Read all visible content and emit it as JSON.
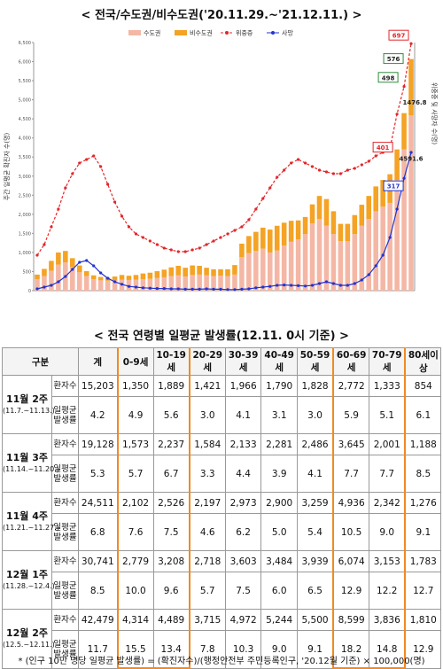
{
  "chart_data": {
    "type": "bar",
    "title": "< 전국/수도권/비수도권('20.11.29.~'21.12.11.) >",
    "y_label": "주간 일평균 확진자 수(명)",
    "y2_label": "위중증 및 사망자 수(명)",
    "categories": [
      null,
      null,
      null,
      null,
      null,
      null,
      null,
      null,
      null,
      null,
      null,
      null,
      null,
      null,
      null,
      null,
      null,
      null,
      null,
      null,
      null,
      null,
      null,
      null,
      null,
      null,
      null,
      null,
      null,
      null,
      null,
      null,
      null,
      null,
      null,
      null,
      null,
      null,
      null,
      null,
      null,
      null,
      null,
      null,
      null,
      null,
      null,
      null,
      null,
      null,
      null,
      null,
      null,
      null
    ],
    "stacked": true,
    "ylim": [
      0,
      6500
    ],
    "yticks": [
      0,
      500,
      {
        "value": 1000,
        "label": "1,000"
      },
      {
        "value": 1500,
        "label": "1,500"
      },
      {
        "value": 2000,
        "label": "2,000"
      },
      {
        "value": 2500,
        "label": "2,500"
      },
      {
        "value": 3000,
        "label": "3,000"
      },
      {
        "value": 3500,
        "label": "3,500"
      },
      {
        "value": 4000,
        "label": "4,000"
      },
      {
        "value": 4500,
        "label": "4,500"
      },
      {
        "value": 5000,
        "label": "5,000"
      },
      {
        "value": 5500,
        "label": "5,500"
      },
      {
        "value": 6000,
        "label": "6,000"
      },
      {
        "value": 6500,
        "label": "6,500"
      }
    ],
    "y2lim": [
      0,
      700
    ],
    "series": [
      {
        "name": "수도권",
        "type": "bar",
        "color": "#f5b7a5",
        "values": [
          300,
          380,
          520,
          680,
          740,
          620,
          480,
          380,
          300,
          270,
          260,
          270,
          290,
          280,
          290,
          300,
          310,
          330,
          350,
          380,
          400,
          370,
          410,
          420,
          400,
          380,
          390,
          380,
          420,
          880,
          980,
          1040,
          1100,
          1000,
          1050,
          1180,
          1280,
          1340,
          1480,
          1760,
          1880,
          1700,
          1480,
          1300,
          1300,
          1480,
          1700,
          1880,
          2080,
          2200,
          2300,
          2900,
          3700,
          4591.6
        ]
      },
      {
        "name": "비수도권",
        "type": "bar",
        "color": "#f4a324",
        "values": [
          120,
          190,
          260,
          320,
          300,
          230,
          180,
          130,
          100,
          90,
          80,
          100,
          120,
          110,
          120,
          150,
          160,
          180,
          200,
          230,
          250,
          230,
          250,
          230,
          200,
          180,
          170,
          180,
          250,
          350,
          450,
          500,
          550,
          600,
          650,
          600,
          550,
          500,
          450,
          500,
          600,
          700,
          600,
          450,
          450,
          500,
          550,
          600,
          650,
          700,
          750,
          800,
          950,
          1476.8
        ]
      },
      {
        "name": "위중증",
        "type": "line",
        "axis": "y2",
        "color": "#e3262b",
        "dashed": true,
        "values": [
          100,
          130,
          180,
          230,
          290,
          330,
          360,
          370,
          380,
          350,
          300,
          250,
          210,
          180,
          160,
          150,
          140,
          130,
          120,
          115,
          110,
          110,
          115,
          120,
          130,
          140,
          150,
          160,
          170,
          180,
          200,
          230,
          260,
          290,
          320,
          340,
          360,
          370,
          360,
          350,
          340,
          335,
          330,
          330,
          340,
          345,
          355,
          365,
          380,
          390,
          401,
          498,
          576,
          697
        ]
      },
      {
        "name": "사망",
        "type": "line",
        "axis": "y2",
        "color": "#2233d0",
        "dashed": false,
        "values": [
          5,
          10,
          15,
          25,
          40,
          60,
          80,
          85,
          70,
          50,
          35,
          25,
          18,
          12,
          10,
          8,
          7,
          6,
          6,
          5,
          5,
          4,
          4,
          4,
          5,
          4,
          4,
          3,
          3,
          4,
          5,
          8,
          10,
          12,
          15,
          16,
          15,
          14,
          13,
          15,
          20,
          25,
          20,
          15,
          15,
          20,
          30,
          45,
          70,
          100,
          150,
          230,
          317,
          390
        ]
      }
    ]
  },
  "table": {
    "title": "< 전국 연령별 일평균 발생률(12.11. 0시 기준) >",
    "header": [
      "구분",
      "계",
      "0-9세",
      "10-19세",
      "20-29세",
      "30-39세",
      "40-49세",
      "50-59세",
      "60-69세",
      "70-79세",
      "80세이상"
    ],
    "groups": [
      {
        "label": "11월 2주",
        "range": "(11.7.~11.13.)",
        "rows": [
          {
            "label": "환자수",
            "cells": [
              "15,203",
              "1,350",
              "1,889",
              "1,421",
              "1,966",
              "1,790",
              "1,828",
              "2,772",
              "1,333",
              "854"
            ]
          },
          {
            "label": "일평균 발생률",
            "cells": [
              "4.2",
              "4.9",
              "5.6",
              "3.0",
              "4.1",
              "3.1",
              "3.0",
              "5.9",
              "5.1",
              "6.1"
            ]
          }
        ]
      },
      {
        "label": "11월 3주",
        "range": "(11.14.~11.20.)",
        "rows": [
          {
            "label": "환자수",
            "cells": [
              "19,128",
              "1,573",
              "2,237",
              "1,584",
              "2,133",
              "2,281",
              "2,486",
              "3,645",
              "2,001",
              "1,188"
            ]
          },
          {
            "label": "일평균 발생률",
            "cells": [
              "5.3",
              "5.7",
              "6.7",
              "3.3",
              "4.4",
              "3.9",
              "4.1",
              "7.7",
              "7.7",
              "8.5"
            ]
          }
        ]
      },
      {
        "label": "11월 4주",
        "range": "(11.21.~11.27.)",
        "rows": [
          {
            "label": "환자수",
            "cells": [
              "24,511",
              "2,102",
              "2,526",
              "2,197",
              "2,973",
              "2,900",
              "3,259",
              "4,936",
              "2,342",
              "1,276"
            ]
          },
          {
            "label": "일평균 발생률",
            "cells": [
              "6.8",
              "7.6",
              "7.5",
              "4.6",
              "6.2",
              "5.0",
              "5.4",
              "10.5",
              "9.0",
              "9.1"
            ]
          }
        ]
      },
      {
        "label": "12월 1주",
        "range": "(11.28.~12.4.)",
        "rows": [
          {
            "label": "환자수",
            "cells": [
              "30,741",
              "2,779",
              "3,208",
              "2,718",
              "3,603",
              "3,484",
              "3,939",
              "6,074",
              "3,153",
              "1,783"
            ]
          },
          {
            "label": "일평균 발생률",
            "cells": [
              "8.5",
              "10.0",
              "9.6",
              "5.7",
              "7.5",
              "6.0",
              "6.5",
              "12.9",
              "12.2",
              "12.7"
            ]
          }
        ]
      },
      {
        "label": "12월 2주",
        "range": "(12.5.~12.11.)",
        "rows": [
          {
            "label": "환자수",
            "cells": [
              "42,479",
              "4,314",
              "4,489",
              "3,715",
              "4,972",
              "5,244",
              "5,500",
              "8,599",
              "3,836",
              "1,810"
            ]
          },
          {
            "label": "일평균 발생률",
            "cells": [
              "11.7",
              "15.5",
              "13.4",
              "7.8",
              "10.3",
              "9.0",
              "9.1",
              "18.2",
              "14.8",
              "12.9"
            ]
          }
        ]
      }
    ]
  },
  "footnote": "* (인구 10만 명당 일평균 발생률) = (확진자수)/(행정안전부 주민등록인구, '20.12월 기준) × 100,000(명)"
}
